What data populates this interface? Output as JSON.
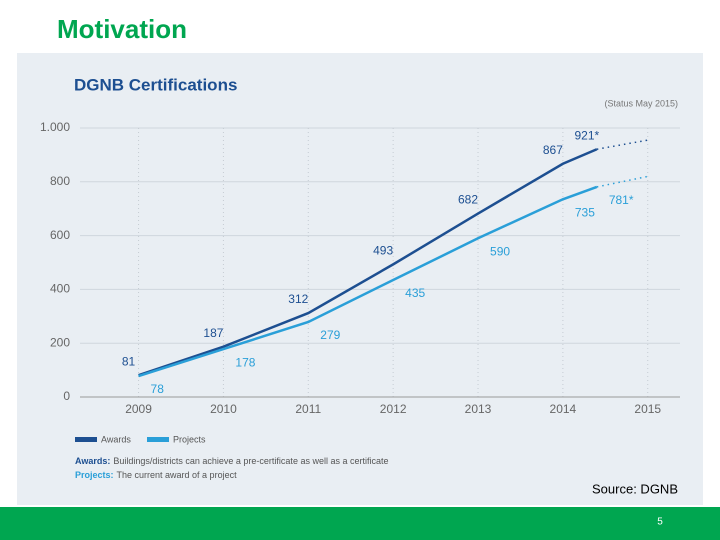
{
  "slide": {
    "title": "Motivation",
    "source": "Source: DGNB",
    "page_number": "5"
  },
  "chart_data": {
    "type": "line",
    "title": "DGNB Certifications",
    "note": "(Status May 2015)",
    "x": [
      2009,
      2010,
      2011,
      2012,
      2013,
      2014,
      2014.4
    ],
    "series": [
      {
        "name": "Awards",
        "color": "#1d4f91",
        "values": [
          81,
          187,
          312,
          493,
          682,
          867,
          921
        ],
        "value_labels": [
          "81",
          "187",
          "312",
          "493",
          "682",
          "867",
          "921*"
        ],
        "projection_to": {
          "x": 2015,
          "value": 955
        }
      },
      {
        "name": "Projects",
        "color": "#2a9fd8",
        "values": [
          78,
          178,
          279,
          435,
          590,
          735,
          781
        ],
        "value_labels": [
          "78",
          "178",
          "279",
          "435",
          "590",
          "735",
          "781*"
        ],
        "projection_to": {
          "x": 2015,
          "value": 820
        }
      }
    ],
    "xlim": [
      2008.31,
      2015.38
    ],
    "xticks": [
      2009,
      2010,
      2011,
      2012,
      2013,
      2014,
      2015
    ],
    "ylim": [
      0,
      1000
    ],
    "yticks": [
      0,
      200,
      400,
      600,
      800,
      {
        "value": 1000,
        "label": "1.000"
      }
    ],
    "grid": true,
    "legend": "bottom-left",
    "footnotes": [
      {
        "label": "Awards:",
        "text": "Buildings/districts can achieve a pre-certificate as well as a certificate"
      },
      {
        "label": "Projects:",
        "text": "The current award of a project"
      }
    ]
  }
}
